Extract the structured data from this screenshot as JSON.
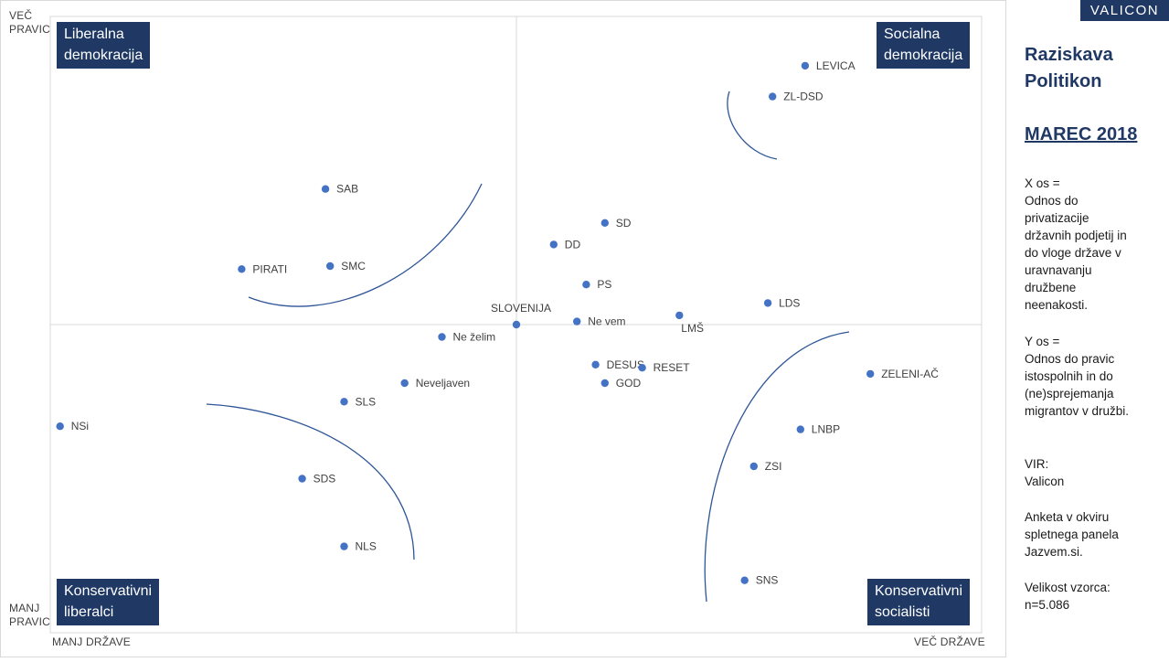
{
  "brand": "VALICON",
  "sidebar": {
    "title_line1": "Raziskava",
    "title_line2": "Politikon",
    "date": "MAREC 2018",
    "x_axis": [
      "X os =",
      "Odnos do",
      "privatizacije",
      "državnih podjetij in",
      "do vloge države v",
      "uravnavanju",
      "družbene",
      "neenakosti."
    ],
    "y_axis": [
      "Y os =",
      "Odnos do pravic",
      "istospolnih in do",
      "(ne)sprejemanja",
      "migrantov v družbi."
    ],
    "source": [
      "VIR:",
      "Valicon"
    ],
    "survey": [
      "Anketa v okviru",
      "spletnega panela",
      "Jazvem.si."
    ],
    "sample": [
      "Velikost vzorca:",
      "n=5.086"
    ]
  },
  "quadrants": {
    "top_left": [
      "Liberalna",
      "demokracija"
    ],
    "top_right": [
      "Socialna",
      "demokracija"
    ],
    "bottom_left": [
      "Konservativni",
      "liberalci"
    ],
    "bottom_right": [
      "Konservativni",
      "socialisti"
    ]
  },
  "axis_labels": {
    "top_left": [
      "VEČ",
      "PRAVIC"
    ],
    "bottom_left": [
      "MANJ",
      "PRAVIC"
    ],
    "x_min": "MANJ DRŽAVE",
    "x_max": "VEČ DRŽAVE"
  },
  "colors": {
    "point": "#4472c4",
    "curve": "#2e5597",
    "quadrant_bg": "#1f3864",
    "grid": "#d9d9d9"
  },
  "chart_data": {
    "type": "scatter",
    "xlim": [
      -1,
      1
    ],
    "ylim": [
      -1,
      1
    ],
    "grid": false,
    "points": [
      {
        "label": "LEVICA",
        "x": 0.62,
        "y": 0.84
      },
      {
        "label": "ZL-DSD",
        "x": 0.55,
        "y": 0.74
      },
      {
        "label": "SAB",
        "x": -0.41,
        "y": 0.44
      },
      {
        "label": "SD",
        "x": 0.19,
        "y": 0.33
      },
      {
        "label": "DD",
        "x": 0.08,
        "y": 0.26
      },
      {
        "label": "PIRATI",
        "x": -0.59,
        "y": 0.18
      },
      {
        "label": "SMC",
        "x": -0.4,
        "y": 0.19
      },
      {
        "label": "PS",
        "x": 0.15,
        "y": 0.13
      },
      {
        "label": "LDS",
        "x": 0.54,
        "y": 0.07
      },
      {
        "label": "LMŠ",
        "x": 0.35,
        "y": 0.03
      },
      {
        "label": "SLOVENIJA",
        "x": 0.0,
        "y": 0.0
      },
      {
        "label": "Ne vem",
        "x": 0.13,
        "y": 0.01
      },
      {
        "label": "Ne želim",
        "x": -0.16,
        "y": -0.04
      },
      {
        "label": "DESUS",
        "x": 0.17,
        "y": -0.13
      },
      {
        "label": "RESET",
        "x": 0.27,
        "y": -0.14
      },
      {
        "label": "GOD",
        "x": 0.19,
        "y": -0.19
      },
      {
        "label": "ZELENI-AČ",
        "x": 0.76,
        "y": -0.16
      },
      {
        "label": "Neveljaven",
        "x": -0.24,
        "y": -0.19
      },
      {
        "label": "SLS",
        "x": -0.37,
        "y": -0.25
      },
      {
        "label": "NSi",
        "x": -0.98,
        "y": -0.33
      },
      {
        "label": "LNBP",
        "x": 0.61,
        "y": -0.34
      },
      {
        "label": "ZSI",
        "x": 0.51,
        "y": -0.46
      },
      {
        "label": "SDS",
        "x": -0.46,
        "y": -0.5
      },
      {
        "label": "NLS",
        "x": -0.37,
        "y": -0.72
      },
      {
        "label": "SNS",
        "x": 0.49,
        "y": -0.83
      }
    ]
  }
}
